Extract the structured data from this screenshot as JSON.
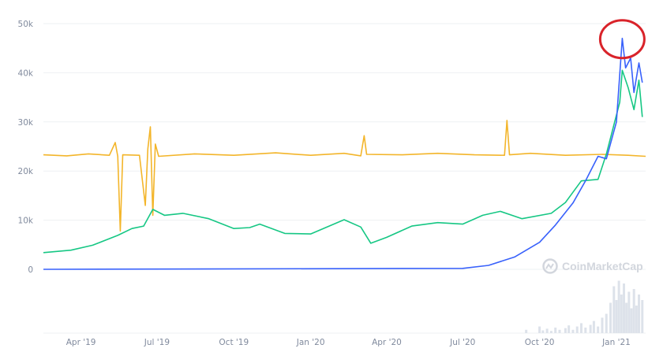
{
  "chart_data": {
    "type": "line",
    "title": "",
    "xlabel": "",
    "ylabel": "",
    "ylim": [
      0,
      50000
    ],
    "y_ticks": [
      {
        "value": 0,
        "label": "0"
      },
      {
        "value": 10000,
        "label": "10k"
      },
      {
        "value": 20000,
        "label": "20k"
      },
      {
        "value": 30000,
        "label": "30k"
      },
      {
        "value": 40000,
        "label": "40k"
      },
      {
        "value": 50000,
        "label": "50k"
      }
    ],
    "x_range": [
      "2019-02-15",
      "2021-02-05"
    ],
    "x_ticks": [
      {
        "date": "2019-04-01",
        "label": "Apr '19"
      },
      {
        "date": "2019-07-01",
        "label": "Jul '19"
      },
      {
        "date": "2019-10-01",
        "label": "Oct '19"
      },
      {
        "date": "2020-01-01",
        "label": "Jan '20"
      },
      {
        "date": "2020-04-01",
        "label": "Apr '20"
      },
      {
        "date": "2020-07-01",
        "label": "Jul '20"
      },
      {
        "date": "2020-10-01",
        "label": "Oct '20"
      },
      {
        "date": "2021-01-01",
        "label": "Jan '21"
      }
    ],
    "grid": true,
    "watermark": "CoinMarketCap",
    "annotation": {
      "type": "circle",
      "color": "#d9232a",
      "target": "peak of blue series",
      "date": "2021-01-08",
      "value": 47000
    },
    "series": [
      {
        "color": "#f3b52a",
        "points": [
          [
            "2019-02-15",
            23300
          ],
          [
            "2019-03-15",
            23100
          ],
          [
            "2019-04-10",
            23500
          ],
          [
            "2019-05-05",
            23200
          ],
          [
            "2019-05-12",
            25800
          ],
          [
            "2019-05-15",
            23000
          ],
          [
            "2019-05-18",
            7800
          ],
          [
            "2019-05-21",
            23300
          ],
          [
            "2019-06-10",
            23200
          ],
          [
            "2019-06-17",
            13000
          ],
          [
            "2019-06-20",
            24500
          ],
          [
            "2019-06-23",
            29000
          ],
          [
            "2019-06-26",
            11000
          ],
          [
            "2019-06-29",
            25500
          ],
          [
            "2019-07-03",
            23000
          ],
          [
            "2019-08-15",
            23500
          ],
          [
            "2019-10-01",
            23200
          ],
          [
            "2019-11-20",
            23700
          ],
          [
            "2020-01-01",
            23200
          ],
          [
            "2020-02-10",
            23600
          ],
          [
            "2020-03-01",
            23100
          ],
          [
            "2020-03-05",
            27200
          ],
          [
            "2020-03-08",
            23400
          ],
          [
            "2020-04-20",
            23300
          ],
          [
            "2020-06-01",
            23600
          ],
          [
            "2020-07-15",
            23300
          ],
          [
            "2020-08-20",
            23200
          ],
          [
            "2020-08-23",
            30300
          ],
          [
            "2020-08-26",
            23300
          ],
          [
            "2020-09-20",
            23600
          ],
          [
            "2020-11-01",
            23200
          ],
          [
            "2020-12-15",
            23400
          ],
          [
            "2021-01-15",
            23200
          ],
          [
            "2021-02-05",
            23000
          ]
        ]
      },
      {
        "color": "#16c784",
        "points": [
          [
            "2019-02-15",
            3400
          ],
          [
            "2019-03-20",
            3900
          ],
          [
            "2019-04-15",
            4900
          ],
          [
            "2019-05-15",
            6900
          ],
          [
            "2019-06-01",
            8300
          ],
          [
            "2019-06-15",
            8800
          ],
          [
            "2019-06-26",
            12200
          ],
          [
            "2019-07-10",
            11000
          ],
          [
            "2019-08-01",
            11400
          ],
          [
            "2019-09-01",
            10300
          ],
          [
            "2019-10-01",
            8300
          ],
          [
            "2019-10-20",
            8500
          ],
          [
            "2019-11-01",
            9200
          ],
          [
            "2019-12-01",
            7300
          ],
          [
            "2020-01-01",
            7200
          ],
          [
            "2020-02-10",
            10100
          ],
          [
            "2020-03-01",
            8600
          ],
          [
            "2020-03-13",
            5300
          ],
          [
            "2020-04-01",
            6500
          ],
          [
            "2020-05-01",
            8800
          ],
          [
            "2020-06-01",
            9500
          ],
          [
            "2020-07-01",
            9200
          ],
          [
            "2020-07-25",
            11000
          ],
          [
            "2020-08-15",
            11800
          ],
          [
            "2020-09-10",
            10300
          ],
          [
            "2020-10-15",
            11400
          ],
          [
            "2020-11-01",
            13600
          ],
          [
            "2020-11-20",
            18000
          ],
          [
            "2020-12-10",
            18300
          ],
          [
            "2020-12-20",
            23500
          ],
          [
            "2021-01-05",
            34000
          ],
          [
            "2021-01-08",
            40500
          ],
          [
            "2021-01-15",
            37000
          ],
          [
            "2021-01-22",
            32500
          ],
          [
            "2021-01-28",
            38500
          ],
          [
            "2021-02-01",
            31000
          ]
        ]
      },
      {
        "color": "#3861fb",
        "points": [
          [
            "2019-02-15",
            0
          ],
          [
            "2020-07-01",
            200
          ],
          [
            "2020-08-01",
            800
          ],
          [
            "2020-09-01",
            2500
          ],
          [
            "2020-10-01",
            5500
          ],
          [
            "2020-10-20",
            9000
          ],
          [
            "2020-11-10",
            13500
          ],
          [
            "2020-11-25",
            18000
          ],
          [
            "2020-12-10",
            23000
          ],
          [
            "2020-12-20",
            22500
          ],
          [
            "2021-01-01",
            30000
          ],
          [
            "2021-01-08",
            47000
          ],
          [
            "2021-01-12",
            41000
          ],
          [
            "2021-01-18",
            43000
          ],
          [
            "2021-01-22",
            36000
          ],
          [
            "2021-01-28",
            42000
          ],
          [
            "2021-02-01",
            38000
          ]
        ]
      }
    ],
    "volume": [
      [
        "2020-09-15",
        0.06
      ],
      [
        "2020-10-01",
        0.12
      ],
      [
        "2020-10-05",
        0.05
      ],
      [
        "2020-10-10",
        0.08
      ],
      [
        "2020-10-15",
        0.04
      ],
      [
        "2020-10-20",
        0.1
      ],
      [
        "2020-10-25",
        0.06
      ],
      [
        "2020-11-01",
        0.09
      ],
      [
        "2020-11-05",
        0.14
      ],
      [
        "2020-11-10",
        0.06
      ],
      [
        "2020-11-15",
        0.12
      ],
      [
        "2020-11-20",
        0.18
      ],
      [
        "2020-11-25",
        0.1
      ],
      [
        "2020-12-01",
        0.15
      ],
      [
        "2020-12-05",
        0.22
      ],
      [
        "2020-12-10",
        0.12
      ],
      [
        "2020-12-15",
        0.28
      ],
      [
        "2020-12-20",
        0.35
      ],
      [
        "2020-12-25",
        0.55
      ],
      [
        "2020-12-29",
        0.85
      ],
      [
        "2021-01-01",
        0.6
      ],
      [
        "2021-01-04",
        0.95
      ],
      [
        "2021-01-07",
        0.7
      ],
      [
        "2021-01-10",
        0.9
      ],
      [
        "2021-01-13",
        0.55
      ],
      [
        "2021-01-16",
        0.75
      ],
      [
        "2021-01-19",
        0.45
      ],
      [
        "2021-01-22",
        0.8
      ],
      [
        "2021-01-25",
        0.5
      ],
      [
        "2021-01-28",
        0.7
      ],
      [
        "2021-02-01",
        0.6
      ]
    ]
  }
}
